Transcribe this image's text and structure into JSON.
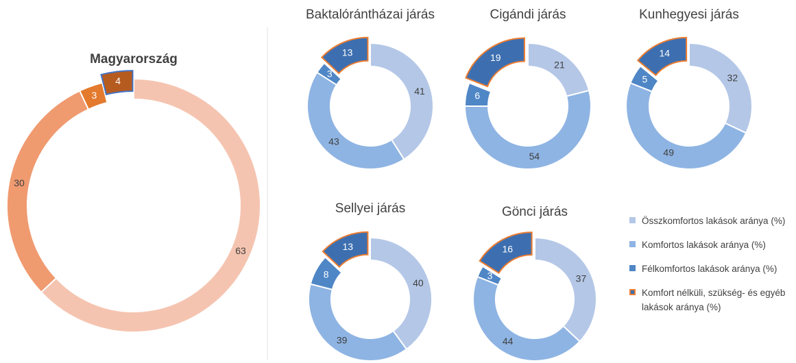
{
  "legend": {
    "items": [
      "Összkomfortos lakások aránya (%)",
      "Komfortos lakások aránya (%)",
      "Félkomfortos lakások aránya (%)",
      "Komfort nélküli, szükség- és egyéb lakások aránya (%)"
    ],
    "colors": [
      "#b4c7e7",
      "#8eb4e3",
      "#4f86c6",
      "#3d6fb0"
    ],
    "explode_stroke": "#ed7d31"
  },
  "chart_data": [
    {
      "type": "donut",
      "title": "Magyarország",
      "values": [
        63,
        30,
        3,
        4
      ],
      "colors": [
        "#f5c4b0",
        "#f09a70",
        "#e37a2e",
        "#b65b1f"
      ],
      "explode": 3,
      "explode_stroke": "#4472c4"
    },
    {
      "type": "donut",
      "title": "Baktalórántházai járás",
      "values": [
        41,
        43,
        3,
        13
      ],
      "colors": [
        "#b4c7e7",
        "#8eb4e3",
        "#4f86c6",
        "#3d6fb0"
      ],
      "explode": 3,
      "explode_stroke": "#ed7d31"
    },
    {
      "type": "donut",
      "title": "Cigándi járás",
      "values": [
        21,
        54,
        6,
        19
      ],
      "colors": [
        "#b4c7e7",
        "#8eb4e3",
        "#4f86c6",
        "#3d6fb0"
      ],
      "explode": 3,
      "explode_stroke": "#ed7d31"
    },
    {
      "type": "donut",
      "title": "Kunhegyesi járás",
      "values": [
        32,
        49,
        5,
        14
      ],
      "colors": [
        "#b4c7e7",
        "#8eb4e3",
        "#4f86c6",
        "#3d6fb0"
      ],
      "explode": 3,
      "explode_stroke": "#ed7d31"
    },
    {
      "type": "donut",
      "title": "Sellyei járás",
      "values": [
        40,
        39,
        8,
        13
      ],
      "colors": [
        "#b4c7e7",
        "#8eb4e3",
        "#4f86c6",
        "#3d6fb0"
      ],
      "explode": 3,
      "explode_stroke": "#ed7d31"
    },
    {
      "type": "donut",
      "title": "Gönci járás",
      "values": [
        37,
        44,
        3,
        16
      ],
      "colors": [
        "#b4c7e7",
        "#8eb4e3",
        "#4f86c6",
        "#3d6fb0"
      ],
      "explode": 3,
      "explode_stroke": "#ed7d31"
    }
  ]
}
